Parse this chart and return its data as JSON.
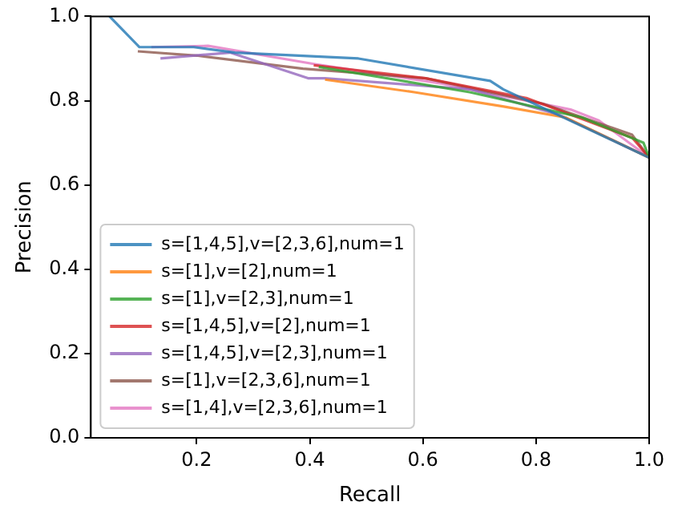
{
  "chart_data": {
    "type": "line",
    "xlabel": "Recall",
    "ylabel": "Precision",
    "xlim": [
      0.013,
      1.0
    ],
    "xticks": [
      {
        "value": 0.2,
        "label": "0.2"
      },
      {
        "value": 0.4,
        "label": "0.4"
      },
      {
        "value": 0.6,
        "label": "0.6"
      },
      {
        "value": 0.8,
        "label": "0.8"
      },
      {
        "value": 1.0,
        "label": "1.0"
      }
    ],
    "ylim": [
      0.0,
      1.0
    ],
    "yticks": [
      {
        "value": 0.0,
        "label": "0.0"
      },
      {
        "value": 0.2,
        "label": "0.2"
      },
      {
        "value": 0.4,
        "label": "0.4"
      },
      {
        "value": 0.6,
        "label": "0.6"
      },
      {
        "value": 0.8,
        "label": "0.8"
      },
      {
        "value": 1.0,
        "label": "1.0"
      }
    ],
    "grid": false,
    "legend": "bottom left",
    "marker": "none",
    "line_style": "solid",
    "series": [
      {
        "name": "s=[1,4,5],v=[2,3,6],num=1",
        "color": "#1f77b4",
        "x": [
          0.046,
          0.099,
          0.195,
          0.268,
          0.486,
          0.719,
          0.742,
          1.0
        ],
        "values": [
          1.0,
          0.927,
          0.927,
          0.914,
          0.9,
          0.847,
          0.827,
          0.665
        ]
      },
      {
        "name": "s=[1],v=[2],num=1",
        "color": "#ff7f0e",
        "x": [
          0.427,
          0.585,
          0.743,
          0.852,
          1.0
        ],
        "values": [
          0.85,
          0.82,
          0.786,
          0.76,
          0.665
        ]
      },
      {
        "name": "s=[1],v=[2,3],num=1",
        "color": "#2ca02c",
        "x": [
          0.416,
          0.683,
          0.881,
          0.99,
          1.0
        ],
        "values": [
          0.88,
          0.82,
          0.76,
          0.7,
          0.665
        ]
      },
      {
        "name": "s=[1,4,5],v=[2],num=1",
        "color": "#d62728",
        "x": [
          0.407,
          0.605,
          0.783,
          0.97,
          1.0
        ],
        "values": [
          0.884,
          0.853,
          0.806,
          0.712,
          0.665
        ]
      },
      {
        "name": "s=[1,4,5],v=[2,3],num=1",
        "color": "#9467bd",
        "x": [
          0.136,
          0.259,
          0.398,
          0.427,
          0.683,
          0.842,
          1.0
        ],
        "values": [
          0.9,
          0.914,
          0.853,
          0.853,
          0.827,
          0.766,
          0.665
        ]
      },
      {
        "name": "s=[1],v=[2,3,6],num=1",
        "color": "#8c564b",
        "x": [
          0.096,
          0.2,
          0.388,
          0.605,
          0.812,
          0.97,
          1.0
        ],
        "values": [
          0.917,
          0.907,
          0.876,
          0.853,
          0.793,
          0.719,
          0.665
        ]
      },
      {
        "name": "s=[1,4],v=[2,3,6],num=1",
        "color": "#e377c2",
        "x": [
          0.12,
          0.22,
          0.407,
          0.635,
          0.861,
          0.911,
          1.0
        ],
        "values": [
          0.927,
          0.93,
          0.887,
          0.84,
          0.779,
          0.753,
          0.665
        ]
      }
    ]
  }
}
